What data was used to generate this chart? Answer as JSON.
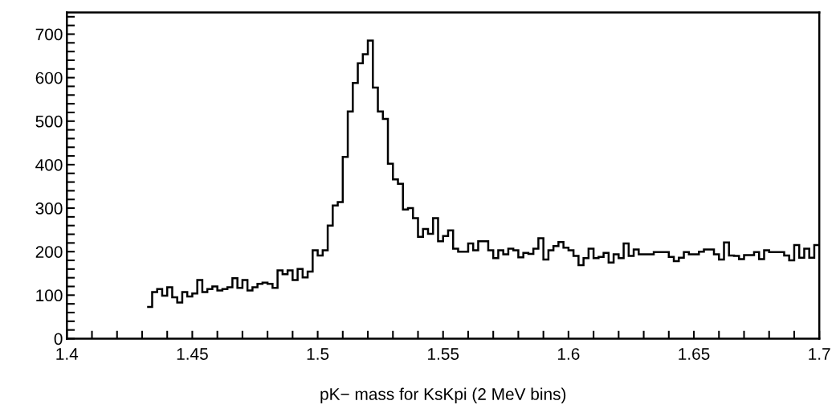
{
  "chart_data": {
    "type": "histogram",
    "xlabel": "pK− mass for KsKpi (2 MeV bins)",
    "color": "#000000",
    "grid": false,
    "xlim": [
      1.4,
      1.7
    ],
    "ylim": [
      0,
      750
    ],
    "xticks": [
      1.4,
      {
        "value": 1.41,
        "label": null
      },
      {
        "value": 1.42,
        "label": null
      },
      {
        "value": 1.43,
        "label": null
      },
      {
        "value": 1.44,
        "label": null
      },
      1.45,
      {
        "value": 1.46,
        "label": null
      },
      {
        "value": 1.47,
        "label": null
      },
      {
        "value": 1.48,
        "label": null
      },
      {
        "value": 1.49,
        "label": null
      },
      1.5,
      {
        "value": 1.51,
        "label": null
      },
      {
        "value": 1.52,
        "label": null
      },
      {
        "value": 1.53,
        "label": null
      },
      {
        "value": 1.54,
        "label": null
      },
      1.55,
      {
        "value": 1.56,
        "label": null
      },
      {
        "value": 1.57,
        "label": null
      },
      {
        "value": 1.58,
        "label": null
      },
      {
        "value": 1.59,
        "label": null
      },
      1.6,
      {
        "value": 1.61,
        "label": null
      },
      {
        "value": 1.62,
        "label": null
      },
      {
        "value": 1.63,
        "label": null
      },
      {
        "value": 1.64,
        "label": null
      },
      1.65,
      {
        "value": 1.66,
        "label": null
      },
      {
        "value": 1.67,
        "label": null
      },
      {
        "value": 1.68,
        "label": null
      },
      {
        "value": 1.69,
        "label": null
      },
      1.7
    ],
    "yticks": [
      0,
      {
        "value": 20,
        "label": null
      },
      {
        "value": 40,
        "label": null
      },
      {
        "value": 60,
        "label": null
      },
      {
        "value": 80,
        "label": null
      },
      100,
      {
        "value": 120,
        "label": null
      },
      {
        "value": 140,
        "label": null
      },
      {
        "value": 160,
        "label": null
      },
      {
        "value": 180,
        "label": null
      },
      200,
      {
        "value": 220,
        "label": null
      },
      {
        "value": 240,
        "label": null
      },
      {
        "value": 260,
        "label": null
      },
      {
        "value": 280,
        "label": null
      },
      300,
      {
        "value": 320,
        "label": null
      },
      {
        "value": 340,
        "label": null
      },
      {
        "value": 360,
        "label": null
      },
      {
        "value": 380,
        "label": null
      },
      400,
      {
        "value": 420,
        "label": null
      },
      {
        "value": 440,
        "label": null
      },
      {
        "value": 460,
        "label": null
      },
      {
        "value": 480,
        "label": null
      },
      500,
      {
        "value": 520,
        "label": null
      },
      {
        "value": 540,
        "label": null
      },
      {
        "value": 560,
        "label": null
      },
      {
        "value": 580,
        "label": null
      },
      600,
      {
        "value": 620,
        "label": null
      },
      {
        "value": 640,
        "label": null
      },
      {
        "value": 660,
        "label": null
      },
      {
        "value": 680,
        "label": null
      },
      700,
      {
        "value": 720,
        "label": null
      },
      {
        "value": 740,
        "label": null
      }
    ],
    "bins": [
      1.432,
      1.434,
      1.436,
      1.438,
      1.44,
      1.442,
      1.444,
      1.446,
      1.448,
      1.45,
      1.452,
      1.454,
      1.456,
      1.458,
      1.46,
      1.462,
      1.464,
      1.466,
      1.468,
      1.47,
      1.472,
      1.474,
      1.476,
      1.478,
      1.48,
      1.482,
      1.484,
      1.486,
      1.488,
      1.49,
      1.492,
      1.494,
      1.496,
      1.498,
      1.5,
      1.502,
      1.504,
      1.506,
      1.508,
      1.51,
      1.512,
      1.514,
      1.516,
      1.518,
      1.52,
      1.522,
      1.524,
      1.526,
      1.528,
      1.53,
      1.532,
      1.534,
      1.536,
      1.538,
      1.54,
      1.542,
      1.544,
      1.546,
      1.548,
      1.55,
      1.552,
      1.554,
      1.556,
      1.558,
      1.56,
      1.562,
      1.564,
      1.566,
      1.568,
      1.57,
      1.572,
      1.574,
      1.576,
      1.578,
      1.58,
      1.582,
      1.584,
      1.586,
      1.588,
      1.59,
      1.592,
      1.594,
      1.596,
      1.598,
      1.6,
      1.602,
      1.604,
      1.606,
      1.608,
      1.61,
      1.612,
      1.614,
      1.616,
      1.618,
      1.62,
      1.622,
      1.624,
      1.626,
      1.628,
      1.63,
      1.632,
      1.634,
      1.636,
      1.638,
      1.64,
      1.642,
      1.644,
      1.646,
      1.648,
      1.65,
      1.652,
      1.654,
      1.656,
      1.658,
      1.66,
      1.662,
      1.664,
      1.666,
      1.668,
      1.67,
      1.672,
      1.674,
      1.676,
      1.678,
      1.68,
      1.682,
      1.684,
      1.686,
      1.688,
      1.69,
      1.692,
      1.694,
      1.696,
      1.698,
      1.7
    ],
    "values": [
      73,
      107,
      114,
      99,
      118,
      95,
      83,
      107,
      97,
      104,
      135,
      107,
      114,
      120,
      111,
      114,
      118,
      139,
      117,
      135,
      111,
      118,
      126,
      129,
      126,
      117,
      157,
      148,
      157,
      135,
      160,
      141,
      154,
      203,
      191,
      203,
      260,
      306,
      314,
      418,
      522,
      588,
      633,
      654,
      685,
      577,
      522,
      505,
      402,
      366,
      356,
      297,
      300,
      277,
      234,
      252,
      241,
      277,
      224,
      236,
      249,
      207,
      200,
      200,
      219,
      203,
      224,
      224,
      203,
      185,
      203,
      194,
      207,
      203,
      187,
      197,
      195,
      207,
      231,
      182,
      203,
      213,
      222,
      209,
      203,
      190,
      169,
      185,
      207,
      185,
      188,
      197,
      175,
      194,
      185,
      219,
      190,
      205,
      194,
      194,
      194,
      199,
      199,
      199,
      188,
      178,
      186,
      199,
      194,
      194,
      200,
      205,
      205,
      194,
      182,
      221,
      191,
      190,
      183,
      192,
      192,
      199,
      183,
      203,
      199,
      199,
      199,
      191,
      180,
      215,
      186,
      207,
      186,
      215
    ]
  }
}
